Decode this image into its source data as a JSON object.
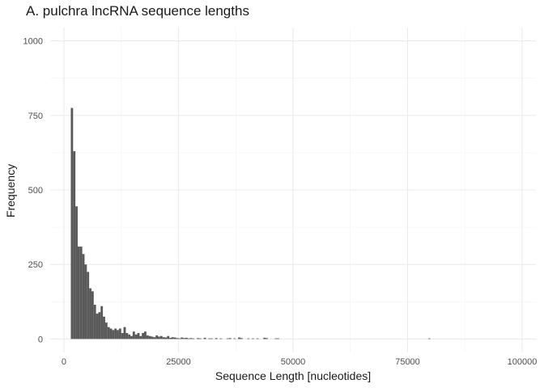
{
  "chart_data": {
    "type": "bar",
    "title": "A. pulchra lncRNA sequence lengths",
    "xlabel": "Sequence Length [nucleotides]",
    "ylabel": "Frequency",
    "xlim": [
      -3000,
      103000
    ],
    "ylim": [
      -45,
      1045
    ],
    "x_ticks": [
      0,
      25000,
      50000,
      75000,
      100000
    ],
    "x_tick_labels": [
      "0",
      "25000",
      "50000",
      "75000",
      "100000"
    ],
    "y_ticks": [
      0,
      250,
      500,
      750,
      1000
    ],
    "y_tick_labels": [
      "0",
      "250",
      "500",
      "750",
      "1000"
    ],
    "grid": true,
    "bar_color": "#595959",
    "bin_width": 500,
    "bins": [
      {
        "x": 1750,
        "y": 775
      },
      {
        "x": 2250,
        "y": 630
      },
      {
        "x": 2750,
        "y": 445
      },
      {
        "x": 3250,
        "y": 310
      },
      {
        "x": 3750,
        "y": 310
      },
      {
        "x": 4250,
        "y": 285
      },
      {
        "x": 4750,
        "y": 250
      },
      {
        "x": 5250,
        "y": 225
      },
      {
        "x": 5750,
        "y": 170
      },
      {
        "x": 6250,
        "y": 160
      },
      {
        "x": 6750,
        "y": 115
      },
      {
        "x": 7250,
        "y": 85
      },
      {
        "x": 7750,
        "y": 90
      },
      {
        "x": 8250,
        "y": 110
      },
      {
        "x": 8750,
        "y": 75
      },
      {
        "x": 9250,
        "y": 55
      },
      {
        "x": 9750,
        "y": 40
      },
      {
        "x": 10250,
        "y": 35
      },
      {
        "x": 10750,
        "y": 30
      },
      {
        "x": 11250,
        "y": 35
      },
      {
        "x": 11750,
        "y": 30
      },
      {
        "x": 12250,
        "y": 35
      },
      {
        "x": 12750,
        "y": 20
      },
      {
        "x": 13250,
        "y": 40
      },
      {
        "x": 13750,
        "y": 20
      },
      {
        "x": 14250,
        "y": 15
      },
      {
        "x": 14750,
        "y": 10
      },
      {
        "x": 15250,
        "y": 25
      },
      {
        "x": 15750,
        "y": 15
      },
      {
        "x": 16250,
        "y": 20
      },
      {
        "x": 16750,
        "y": 10
      },
      {
        "x": 17250,
        "y": 20
      },
      {
        "x": 17750,
        "y": 25
      },
      {
        "x": 18250,
        "y": 12
      },
      {
        "x": 18750,
        "y": 10
      },
      {
        "x": 19250,
        "y": 8
      },
      {
        "x": 19750,
        "y": 6
      },
      {
        "x": 20250,
        "y": 12
      },
      {
        "x": 20750,
        "y": 8
      },
      {
        "x": 21250,
        "y": 10
      },
      {
        "x": 21750,
        "y": 6
      },
      {
        "x": 22250,
        "y": 5
      },
      {
        "x": 22750,
        "y": 10
      },
      {
        "x": 23250,
        "y": 4
      },
      {
        "x": 23750,
        "y": 6
      },
      {
        "x": 24250,
        "y": 5
      },
      {
        "x": 24750,
        "y": 3
      },
      {
        "x": 25250,
        "y": 2
      },
      {
        "x": 25750,
        "y": 5
      },
      {
        "x": 26250,
        "y": 3
      },
      {
        "x": 26750,
        "y": 4
      },
      {
        "x": 27250,
        "y": 2
      },
      {
        "x": 27750,
        "y": 3
      },
      {
        "x": 28250,
        "y": 2
      },
      {
        "x": 29250,
        "y": 3
      },
      {
        "x": 29750,
        "y": 2
      },
      {
        "x": 30750,
        "y": 4
      },
      {
        "x": 31750,
        "y": 2
      },
      {
        "x": 32250,
        "y": 2
      },
      {
        "x": 33250,
        "y": 3
      },
      {
        "x": 34250,
        "y": 2
      },
      {
        "x": 35750,
        "y": 2
      },
      {
        "x": 36250,
        "y": 3
      },
      {
        "x": 37250,
        "y": 2
      },
      {
        "x": 38250,
        "y": 5
      },
      {
        "x": 38750,
        "y": 3
      },
      {
        "x": 40250,
        "y": 2
      },
      {
        "x": 41250,
        "y": 2
      },
      {
        "x": 42250,
        "y": 2
      },
      {
        "x": 43750,
        "y": 4
      },
      {
        "x": 44250,
        "y": 3
      },
      {
        "x": 46250,
        "y": 2
      },
      {
        "x": 46750,
        "y": 2
      },
      {
        "x": 79750,
        "y": 2
      }
    ]
  }
}
